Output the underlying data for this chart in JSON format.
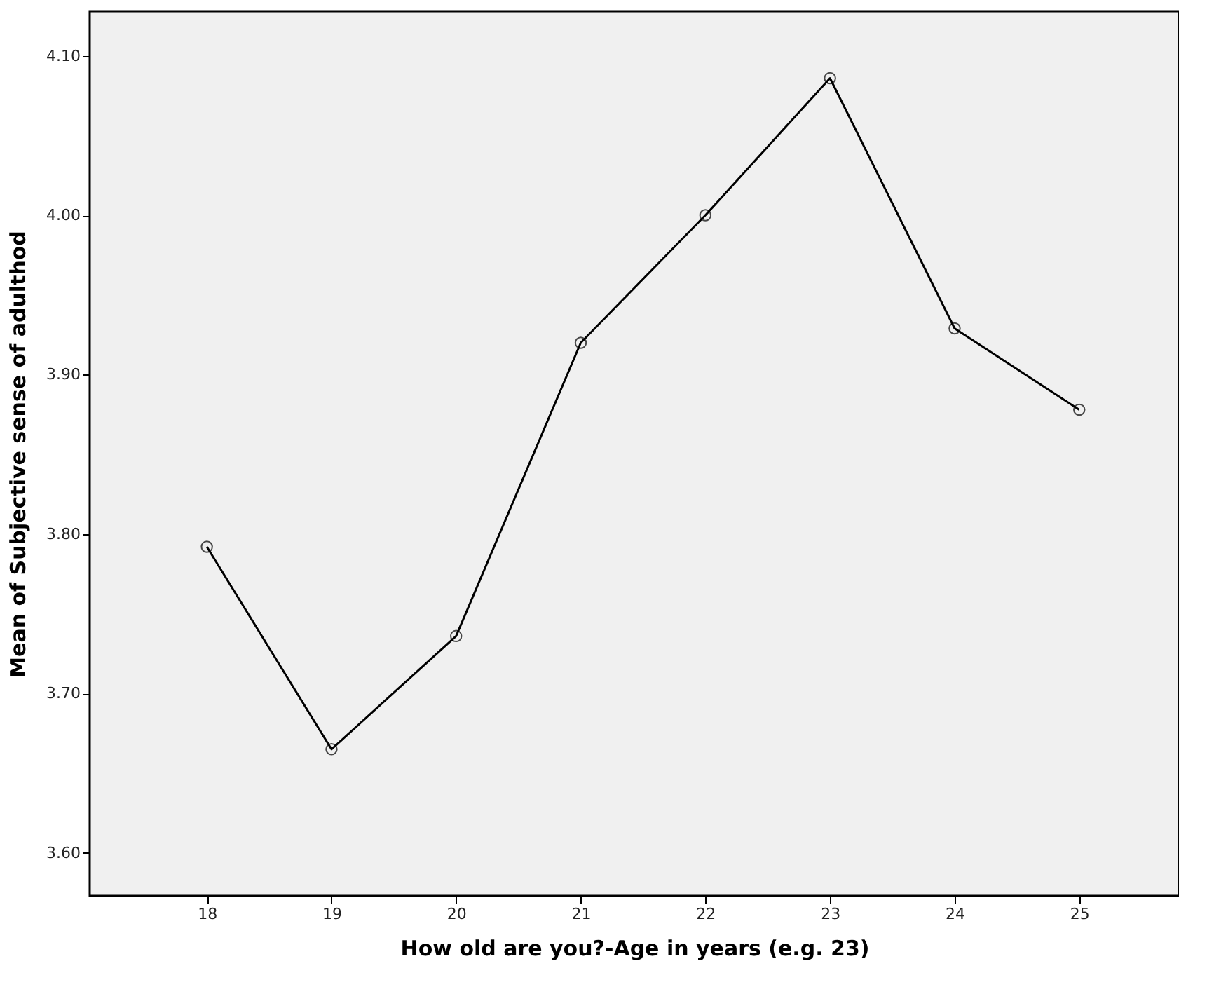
{
  "chart_data": {
    "type": "line",
    "xlabel": "How old are you?-Age in years (e.g. 23)",
    "ylabel": "Mean of Subjective sense of adulthod",
    "x": [
      18,
      19,
      20,
      21,
      22,
      23,
      24,
      25
    ],
    "series": [
      {
        "color": "#000000",
        "values": [
          3.792,
          3.665,
          3.736,
          3.92,
          4.0,
          4.086,
          3.929,
          3.878
        ]
      }
    ],
    "xlim": [
      17.06,
      25.8
    ],
    "xticks": [
      18,
      19,
      20,
      21,
      22,
      23,
      24,
      25
    ],
    "ylim": [
      3.573,
      4.128
    ],
    "yticks": [
      {
        "value": 3.6,
        "label": "3.60"
      },
      {
        "value": 3.7,
        "label": "3.70"
      },
      {
        "value": 3.8,
        "label": "3.80"
      },
      {
        "value": 3.9,
        "label": "3.90"
      },
      {
        "value": 4.0,
        "label": "4.00"
      },
      {
        "value": 4.1,
        "label": "4.10"
      }
    ],
    "grid": false,
    "legend": false,
    "marker": "circle",
    "line_style": "solid"
  }
}
